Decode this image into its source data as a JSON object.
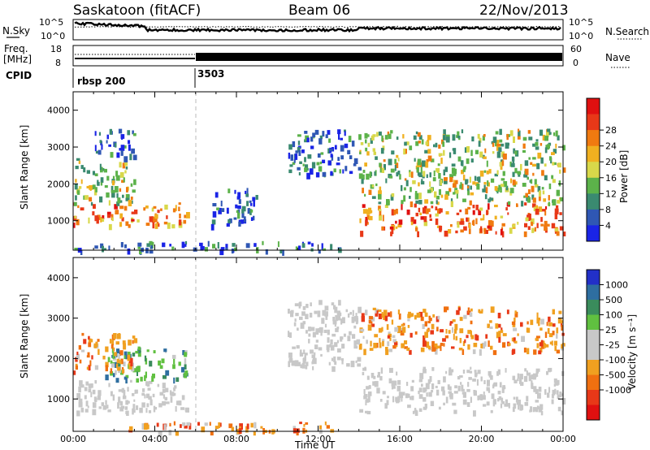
{
  "header": {
    "station": "Saskatoon (fitACF)",
    "beam": "Beam 06",
    "date": "22/Nov/2013"
  },
  "noise_panel": {
    "left_label": "N.Sky",
    "right_label": "N.Search",
    "left_ticks": [
      "10^5",
      "10^0"
    ],
    "right_ticks": [
      "10^5",
      "10^0"
    ]
  },
  "freq_panel": {
    "left_label": "Freq.",
    "left_unit": "[MHz]",
    "right_label": "Nave",
    "left_ticks": [
      "18",
      "8"
    ],
    "right_ticks": [
      "60",
      "0"
    ]
  },
  "cpid_panel": {
    "label": "CPID",
    "segments": [
      {
        "label": "rbsp 200",
        "start_hour": 0
      },
      {
        "label": "3503",
        "start_hour": 6
      }
    ]
  },
  "chart_data": [
    {
      "type": "heatmap",
      "name": "power",
      "xlabel": "",
      "ylabel": "Slant Range [km]",
      "xlim": [
        0,
        24
      ],
      "ylim": [
        200,
        4500
      ],
      "yticks": [
        "1000",
        "2000",
        "3000",
        "4000"
      ],
      "colorbar_label": "Power [dB]",
      "colorbar_ticks": [
        "4",
        "8",
        "12",
        "16",
        "20",
        "24",
        "28"
      ],
      "colorbar_colors": [
        "#1a24e6",
        "#2f57b4",
        "#3a8a70",
        "#5cb24a",
        "#d8d84a",
        "#f0b020",
        "#f07a10",
        "#e83818",
        "#e01010"
      ],
      "echo_regions": [
        {
          "x": [
            0,
            5.6
          ],
          "y": [
            900,
            1500
          ],
          "level": "high"
        },
        {
          "x": [
            0,
            3
          ],
          "y": [
            1500,
            2700
          ],
          "level": "mid"
        },
        {
          "x": [
            1,
            3
          ],
          "y": [
            2700,
            3500
          ],
          "level": "low"
        },
        {
          "x": [
            14,
            24
          ],
          "y": [
            700,
            1500
          ],
          "level": "high"
        },
        {
          "x": [
            14,
            24
          ],
          "y": [
            1500,
            3500
          ],
          "level": "mid"
        },
        {
          "x": [
            0,
            13
          ],
          "y": [
            200,
            450
          ],
          "level": "low"
        },
        {
          "x": [
            6.7,
            9
          ],
          "y": [
            900,
            1900
          ],
          "level": "low"
        },
        {
          "x": [
            10.5,
            14
          ],
          "y": [
            2300,
            3500
          ],
          "level": "low"
        }
      ]
    },
    {
      "type": "heatmap",
      "name": "velocity",
      "xlabel": "Time UT",
      "ylabel": "Slant Range [km]",
      "xlim": [
        0,
        24
      ],
      "ylim": [
        200,
        4500
      ],
      "xticks": [
        "00:00",
        "04:00",
        "08:00",
        "12:00",
        "16:00",
        "20:00",
        "00:00"
      ],
      "yticks": [
        "1000",
        "2000",
        "3000",
        "4000"
      ],
      "colorbar_label": "Velocity [m s⁻¹]",
      "colorbar_ticks": [
        "1000",
        "500",
        "100",
        "25",
        "-25",
        "-100",
        "-500",
        "-1000"
      ],
      "colorbar_colors": [
        "#2230c8",
        "#2e6ea0",
        "#3a8c5c",
        "#60c040",
        "#c8c8c8",
        "#c8c8c8",
        "#f0a020",
        "#f07010",
        "#e83818",
        "#e01010"
      ],
      "echo_regions": [
        {
          "x": [
            0,
            5.6
          ],
          "y": [
            700,
            1500
          ],
          "level": "gray"
        },
        {
          "x": [
            1.5,
            5.6
          ],
          "y": [
            1500,
            2300
          ],
          "level": "green"
        },
        {
          "x": [
            0,
            3
          ],
          "y": [
            1700,
            2700
          ],
          "level": "orange"
        },
        {
          "x": [
            14,
            24
          ],
          "y": [
            700,
            1800
          ],
          "level": "gray"
        },
        {
          "x": [
            14,
            24
          ],
          "y": [
            2200,
            3300
          ],
          "level": "orange"
        },
        {
          "x": [
            10.5,
            14
          ],
          "y": [
            1800,
            3500
          ],
          "level": "gray"
        },
        {
          "x": [
            2,
            13
          ],
          "y": [
            200,
            450
          ],
          "level": "orange"
        }
      ]
    }
  ]
}
